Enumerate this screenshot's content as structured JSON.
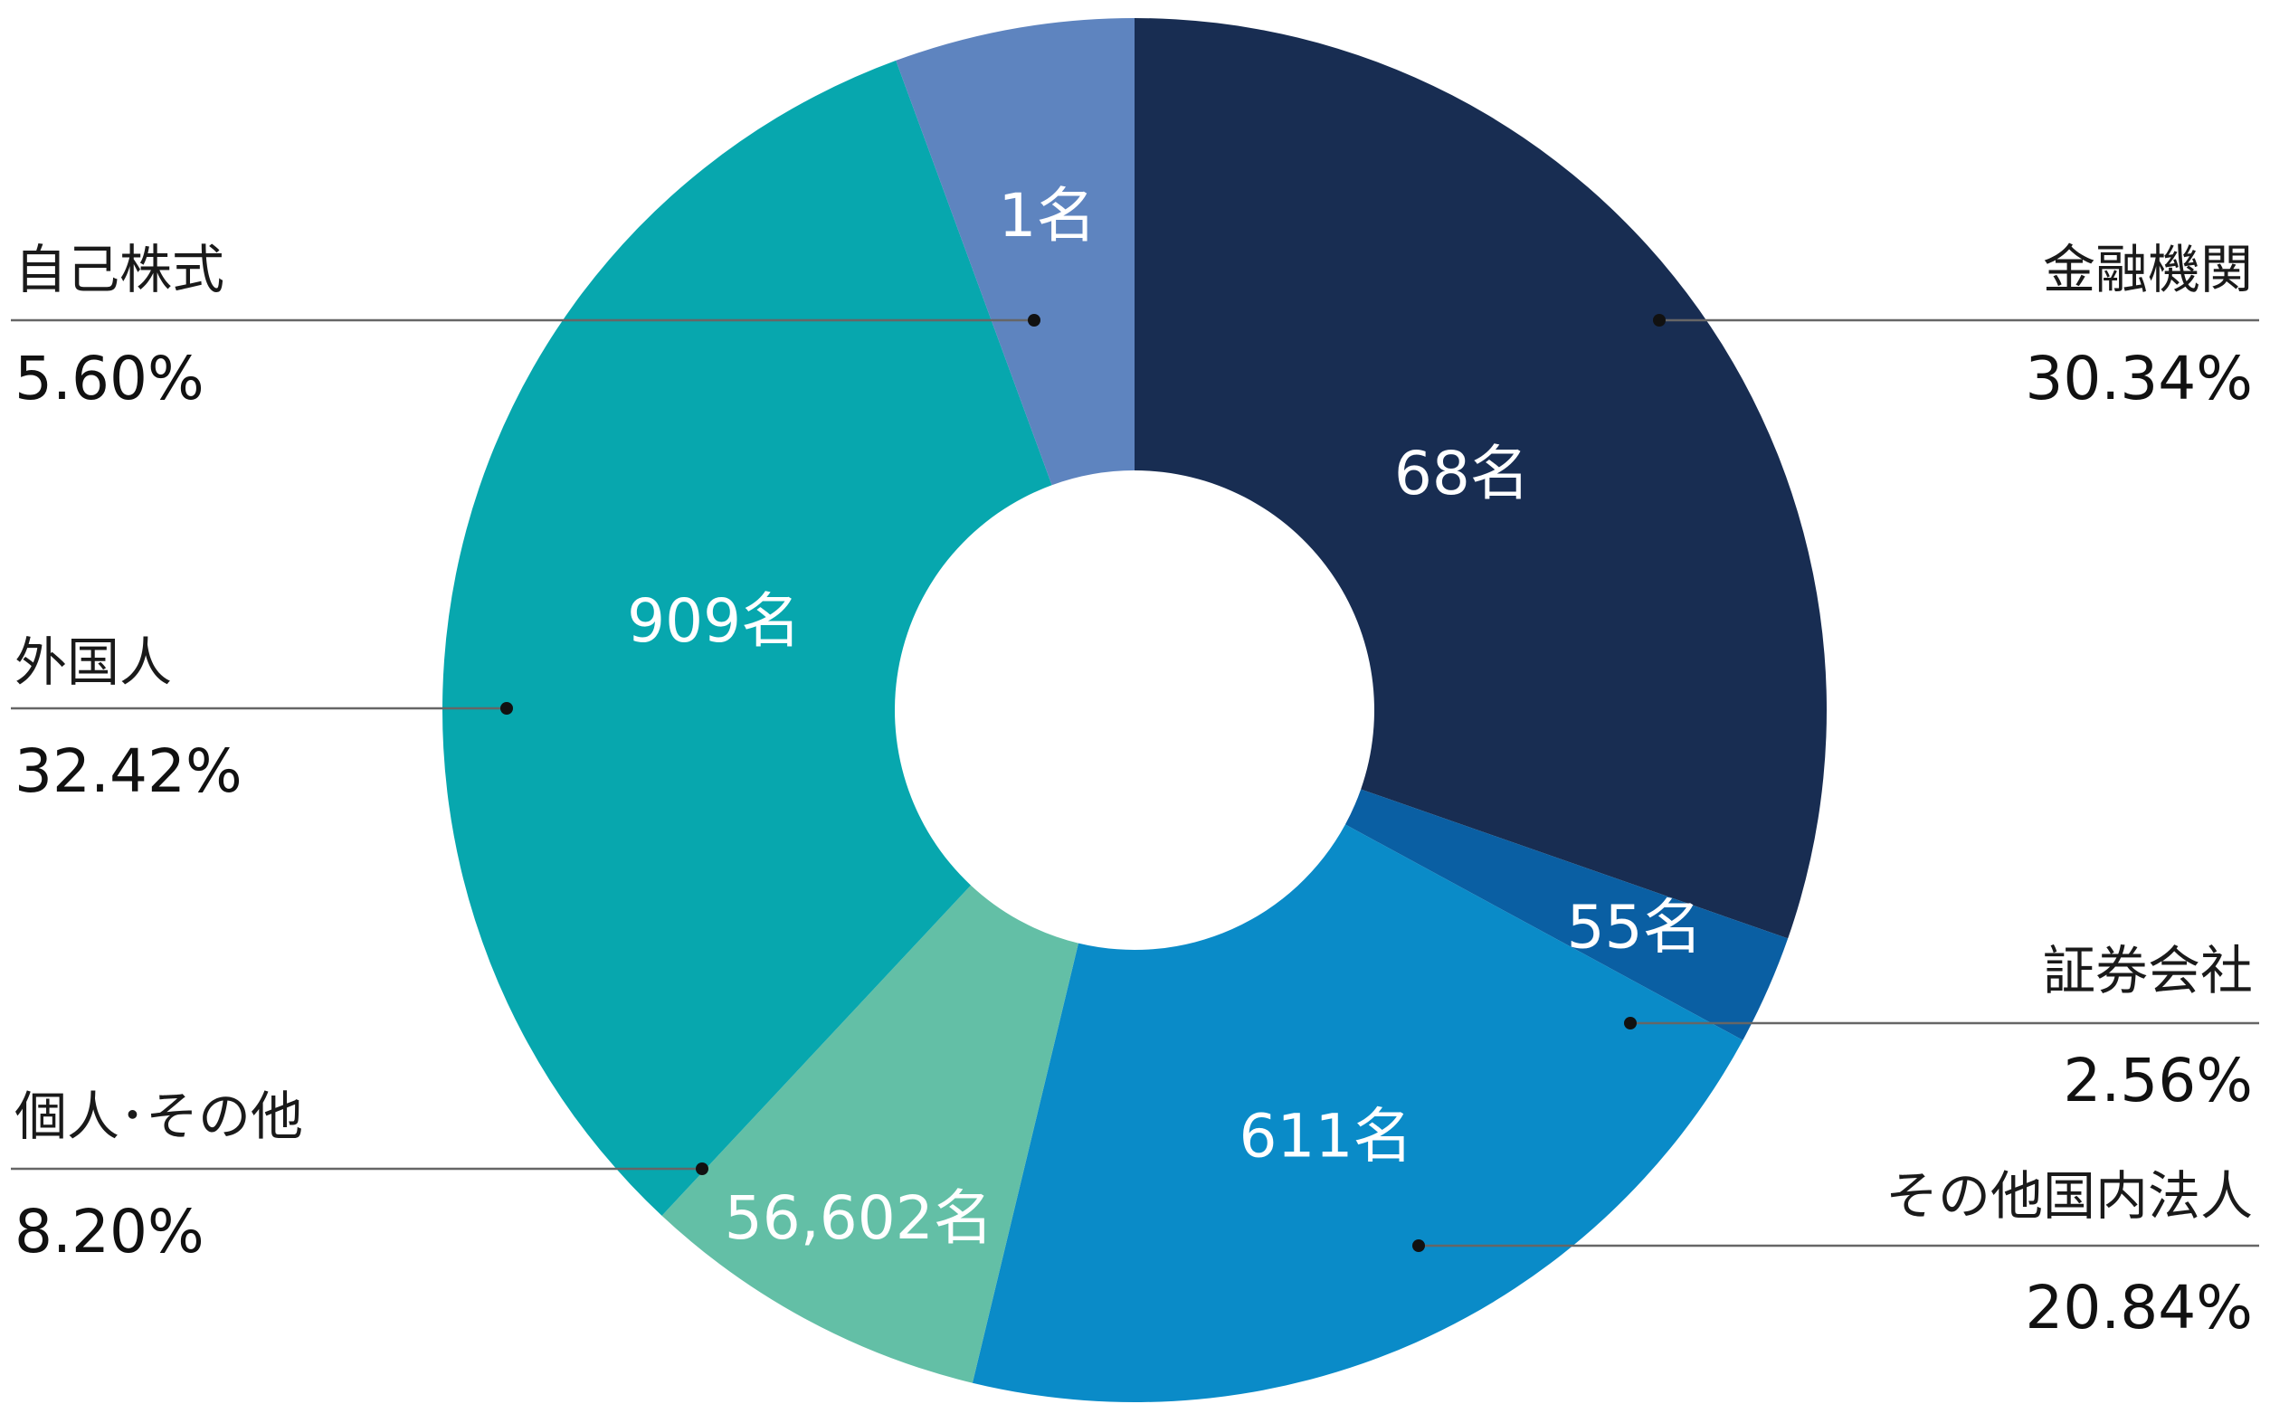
{
  "chart_data": {
    "type": "pie",
    "title": "",
    "donut": true,
    "legend": "none",
    "slices": [
      {
        "category": "金融機関",
        "value": 30.34,
        "percent_label": "30.34%",
        "count_label": "68名",
        "color": "#182D52"
      },
      {
        "category": "証券会社",
        "value": 2.56,
        "percent_label": "2.56%",
        "count_label": "55名",
        "color": "#0A5FA3"
      },
      {
        "category": "その他国内法人",
        "value": 20.84,
        "percent_label": "20.84%",
        "count_label": "611名",
        "color": "#0A8BC8"
      },
      {
        "category": "個人･その他",
        "value": 8.2,
        "percent_label": "8.20%",
        "count_label": "56,602名",
        "color": "#63BFA6"
      },
      {
        "category": "外国人",
        "value": 32.42,
        "percent_label": "32.42%",
        "count_label": "909名",
        "color": "#07A7AE"
      },
      {
        "category": "自己株式",
        "value": 5.6,
        "percent_label": "5.60%",
        "count_label": "1名",
        "color": "#5E84BF"
      }
    ]
  }
}
